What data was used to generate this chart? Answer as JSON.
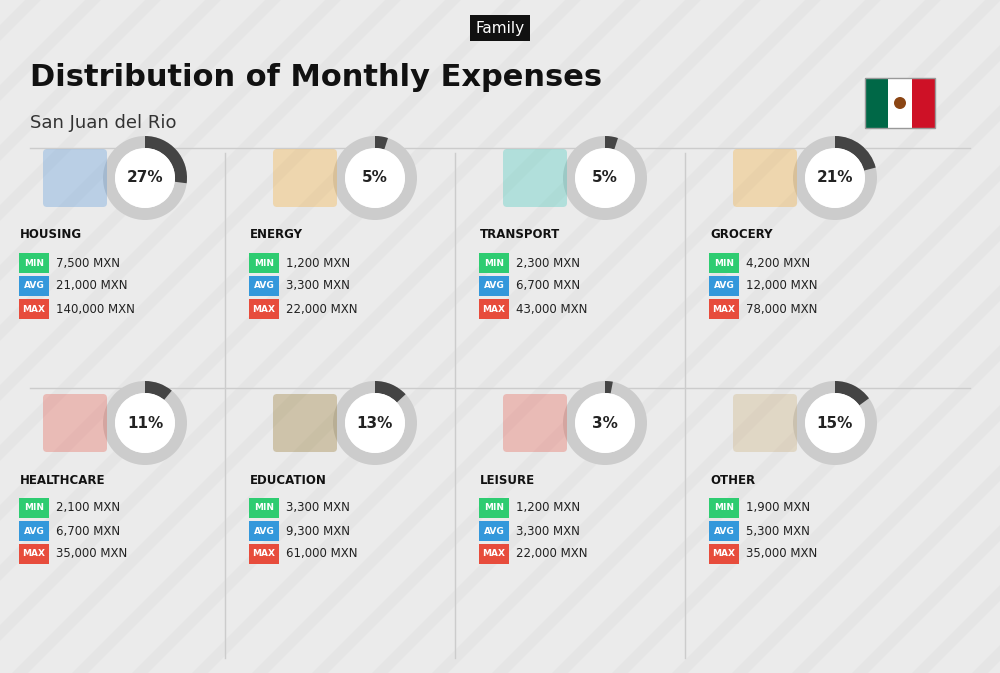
{
  "title": "Distribution of Monthly Expenses",
  "subtitle": "San Juan del Rio",
  "tag": "Family",
  "background_color": "#f0f0f0",
  "categories": [
    {
      "name": "HOUSING",
      "pct": 27,
      "min": "7,500 MXN",
      "avg": "21,000 MXN",
      "max": "140,000 MXN",
      "row": 0,
      "col": 0
    },
    {
      "name": "ENERGY",
      "pct": 5,
      "min": "1,200 MXN",
      "avg": "3,300 MXN",
      "max": "22,000 MXN",
      "row": 0,
      "col": 1
    },
    {
      "name": "TRANSPORT",
      "pct": 5,
      "min": "2,300 MXN",
      "avg": "6,700 MXN",
      "max": "43,000 MXN",
      "row": 0,
      "col": 2
    },
    {
      "name": "GROCERY",
      "pct": 21,
      "min": "4,200 MXN",
      "avg": "12,000 MXN",
      "max": "78,000 MXN",
      "row": 0,
      "col": 3
    },
    {
      "name": "HEALTHCARE",
      "pct": 11,
      "min": "2,100 MXN",
      "avg": "6,700 MXN",
      "max": "35,000 MXN",
      "row": 1,
      "col": 0
    },
    {
      "name": "EDUCATION",
      "pct": 13,
      "min": "3,300 MXN",
      "avg": "9,300 MXN",
      "max": "61,000 MXN",
      "row": 1,
      "col": 1
    },
    {
      "name": "LEISURE",
      "pct": 3,
      "min": "1,200 MXN",
      "avg": "3,300 MXN",
      "max": "22,000 MXN",
      "row": 1,
      "col": 2
    },
    {
      "name": "OTHER",
      "pct": 15,
      "min": "1,900 MXN",
      "avg": "5,300 MXN",
      "max": "35,000 MXN",
      "row": 1,
      "col": 3
    }
  ],
  "color_min": "#2ecc71",
  "color_avg": "#3498db",
  "color_max": "#e74c3c",
  "donut_filled_color": "#555555",
  "donut_empty_color": "#cccccc",
  "text_color": "#222222",
  "label_text_color": "#ffffff"
}
